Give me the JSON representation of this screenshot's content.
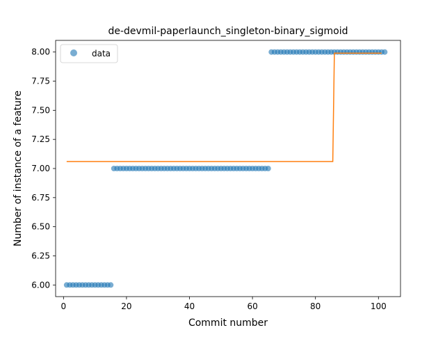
{
  "colors": {
    "data": "#1f77b4",
    "fit": "#ff7f0e",
    "axes": "#000000",
    "background": "#ffffff"
  },
  "chart_data": {
    "type": "scatter",
    "title": "de-devmil-paperlaunch_singleton-binary_sigmoid",
    "xlabel": "Commit number",
    "ylabel": "Number of instance of a feature",
    "xlim": [
      -2.5,
      107
    ],
    "ylim": [
      5.9,
      8.1
    ],
    "xticks": [
      0,
      20,
      40,
      60,
      80,
      100
    ],
    "xtick_labels": [
      "0",
      "20",
      "40",
      "60",
      "80",
      "100"
    ],
    "yticks": [
      6.0,
      6.25,
      6.5,
      6.75,
      7.0,
      7.25,
      7.5,
      7.75,
      8.0
    ],
    "ytick_labels": [
      "6.00",
      "6.25",
      "6.50",
      "6.75",
      "7.00",
      "7.25",
      "7.50",
      "7.75",
      "8.00"
    ],
    "grid": false,
    "legend": {
      "position": "top-left",
      "entries": [
        "data"
      ]
    },
    "series": [
      {
        "name": "data",
        "kind": "scatter",
        "segments": [
          {
            "x_from": 1,
            "x_to": 15,
            "y": 6.0
          },
          {
            "x_from": 16,
            "x_to": 65,
            "y": 7.0
          },
          {
            "x_from": 66,
            "x_to": 102,
            "y": 8.0
          }
        ]
      },
      {
        "kind": "line",
        "x": [
          1,
          85.5,
          86,
          101
        ],
        "y": [
          7.06,
          7.06,
          7.99,
          7.99
        ]
      }
    ]
  }
}
